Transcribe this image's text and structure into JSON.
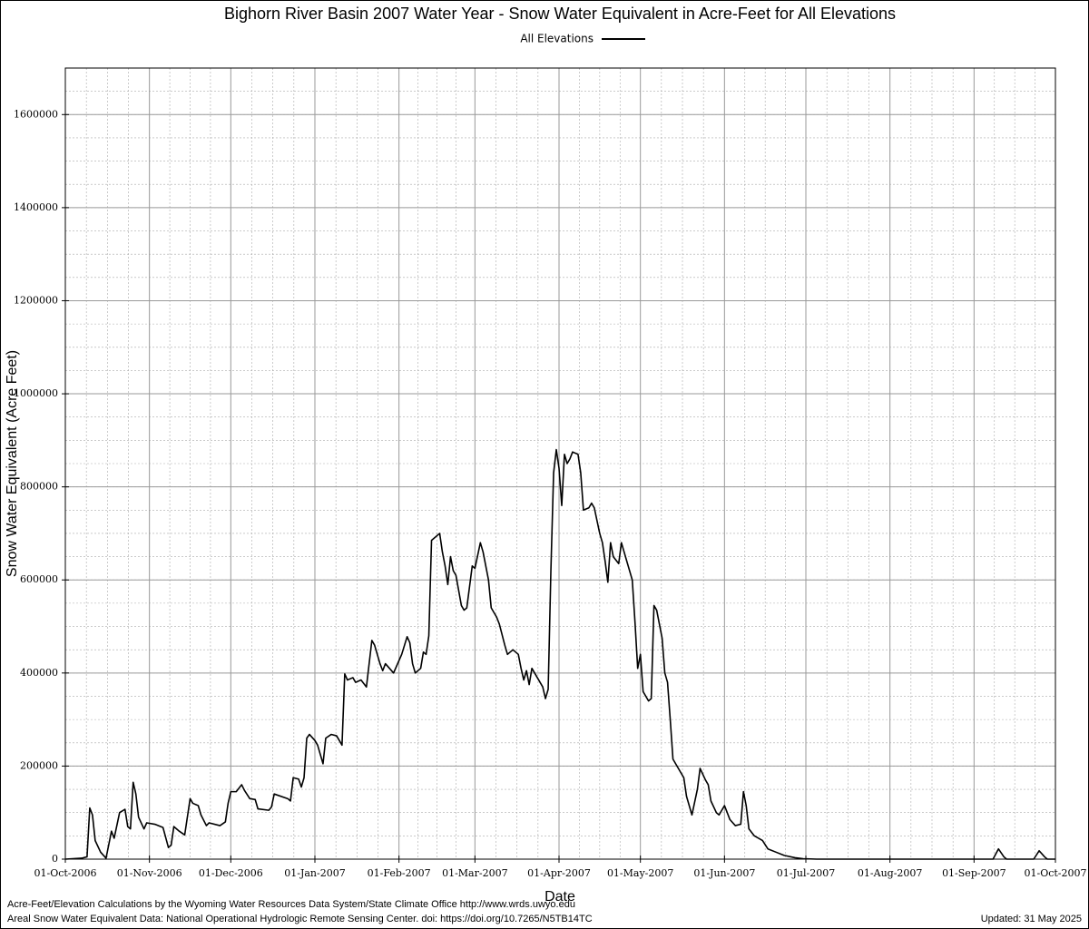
{
  "chart_data": {
    "type": "line",
    "title": "Bighorn River Basin 2007 Water Year - Snow Water Equivalent in Acre-Feet for All Elevations",
    "x_label": "Date",
    "y_label": "Snow Water Equivalent (Acre Feet)",
    "footnotes": [
      "Acre-Feet/Elevation Calculations by the Wyoming Water Resources Data System/State Climate Office http://www.wrds.uwyo.edu",
      "Areal Snow Water Equivalent Data: National Operational Hydrologic Remote Sensing Center. doi: https://doi.org/10.7265/N5TB14TC"
    ],
    "updated": "Updated: 31 May 2025",
    "grid": true,
    "xlim": [
      "2006-10-01",
      "2007-10-01"
    ],
    "xticks": [
      {
        "value": "2006-10-01",
        "label": "01-Oct-2006"
      },
      {
        "value": "2006-11-01",
        "label": "01-Nov-2006"
      },
      {
        "value": "2006-12-01",
        "label": "01-Dec-2006"
      },
      {
        "value": "2007-01-01",
        "label": "01-Jan-2007"
      },
      {
        "value": "2007-02-01",
        "label": "01-Feb-2007"
      },
      {
        "value": "2007-03-01",
        "label": "01-Mar-2007"
      },
      {
        "value": "2007-04-01",
        "label": "01-Apr-2007"
      },
      {
        "value": "2007-05-01",
        "label": "01-May-2007"
      },
      {
        "value": "2007-06-01",
        "label": "01-Jun-2007"
      },
      {
        "value": "2007-07-01",
        "label": "01-Jul-2007"
      },
      {
        "value": "2007-08-01",
        "label": "01-Aug-2007"
      },
      {
        "value": "2007-09-01",
        "label": "01-Sep-2007"
      },
      {
        "value": "2007-10-01",
        "label": "01-Oct-2007"
      }
    ],
    "ylim": [
      0,
      1700000
    ],
    "yticks": [
      0,
      200000,
      400000,
      600000,
      800000,
      1000000,
      1200000,
      1400000,
      1600000
    ],
    "x": [
      "2006-10-01",
      "2006-10-07",
      "2006-10-09",
      "2006-10-10",
      "2006-10-11",
      "2006-10-12",
      "2006-10-14",
      "2006-10-16",
      "2006-10-18",
      "2006-10-19",
      "2006-10-21",
      "2006-10-23",
      "2006-10-24",
      "2006-10-25",
      "2006-10-26",
      "2006-10-27",
      "2006-10-28",
      "2006-10-30",
      "2006-10-31",
      "2006-11-03",
      "2006-11-06",
      "2006-11-08",
      "2006-11-09",
      "2006-11-10",
      "2006-11-12",
      "2006-11-14",
      "2006-11-16",
      "2006-11-17",
      "2006-11-19",
      "2006-11-20",
      "2006-11-22",
      "2006-11-23",
      "2006-11-27",
      "2006-11-29",
      "2006-11-30",
      "2006-12-01",
      "2006-12-03",
      "2006-12-05",
      "2006-12-06",
      "2006-12-08",
      "2006-12-10",
      "2006-12-11",
      "2006-12-15",
      "2006-12-16",
      "2006-12-17",
      "2006-12-22",
      "2006-12-23",
      "2006-12-24",
      "2006-12-26",
      "2006-12-27",
      "2006-12-28",
      "2006-12-29",
      "2006-12-30",
      "2007-01-01",
      "2007-01-02",
      "2007-01-04",
      "2007-01-05",
      "2007-01-07",
      "2007-01-09",
      "2007-01-11",
      "2007-01-12",
      "2007-01-13",
      "2007-01-15",
      "2007-01-16",
      "2007-01-18",
      "2007-01-20",
      "2007-01-22",
      "2007-01-23",
      "2007-01-25",
      "2007-01-26",
      "2007-01-27",
      "2007-01-30",
      "2007-02-02",
      "2007-02-04",
      "2007-02-05",
      "2007-02-06",
      "2007-02-07",
      "2007-02-09",
      "2007-02-10",
      "2007-02-11",
      "2007-02-12",
      "2007-02-13",
      "2007-02-16",
      "2007-02-17",
      "2007-02-18",
      "2007-02-19",
      "2007-02-20",
      "2007-02-21",
      "2007-02-22",
      "2007-02-24",
      "2007-02-25",
      "2007-02-26",
      "2007-02-28",
      "2007-03-01",
      "2007-03-03",
      "2007-03-04",
      "2007-03-06",
      "2007-03-07",
      "2007-03-09",
      "2007-03-10",
      "2007-03-12",
      "2007-03-13",
      "2007-03-15",
      "2007-03-17",
      "2007-03-18",
      "2007-03-19",
      "2007-03-20",
      "2007-03-21",
      "2007-03-22",
      "2007-03-24",
      "2007-03-26",
      "2007-03-27",
      "2007-03-28",
      "2007-03-29",
      "2007-03-30",
      "2007-03-31",
      "2007-04-01",
      "2007-04-02",
      "2007-04-03",
      "2007-04-04",
      "2007-04-05",
      "2007-04-06",
      "2007-04-08",
      "2007-04-09",
      "2007-04-10",
      "2007-04-12",
      "2007-04-13",
      "2007-04-14",
      "2007-04-16",
      "2007-04-17",
      "2007-04-18",
      "2007-04-19",
      "2007-04-20",
      "2007-04-21",
      "2007-04-23",
      "2007-04-24",
      "2007-04-25",
      "2007-04-26",
      "2007-04-28",
      "2007-04-29",
      "2007-04-30",
      "2007-05-01",
      "2007-05-02",
      "2007-05-04",
      "2007-05-05",
      "2007-05-06",
      "2007-05-07",
      "2007-05-09",
      "2007-05-10",
      "2007-05-11",
      "2007-05-12",
      "2007-05-13",
      "2007-05-15",
      "2007-05-17",
      "2007-05-18",
      "2007-05-20",
      "2007-05-22",
      "2007-05-23",
      "2007-05-25",
      "2007-05-26",
      "2007-05-27",
      "2007-05-29",
      "2007-05-30",
      "2007-06-01",
      "2007-06-02",
      "2007-06-03",
      "2007-06-05",
      "2007-06-07",
      "2007-06-08",
      "2007-06-09",
      "2007-06-10",
      "2007-06-12",
      "2007-06-15",
      "2007-06-17",
      "2007-06-20",
      "2007-06-23",
      "2007-06-27",
      "2007-06-30",
      "2007-07-05",
      "2007-09-08",
      "2007-09-10",
      "2007-09-12",
      "2007-09-13",
      "2007-09-23",
      "2007-09-25",
      "2007-09-27",
      "2007-09-28",
      "2007-10-01"
    ],
    "series": [
      {
        "name": "All Elevations",
        "color": "#000000",
        "values": [
          0,
          2000,
          5000,
          110000,
          95000,
          40000,
          15000,
          2000,
          60000,
          45000,
          100000,
          107000,
          70000,
          65000,
          165000,
          140000,
          90000,
          65000,
          78000,
          75000,
          68000,
          25000,
          30000,
          70000,
          60000,
          52000,
          130000,
          120000,
          115000,
          95000,
          72000,
          78000,
          72000,
          80000,
          120000,
          145000,
          145000,
          160000,
          148000,
          130000,
          128000,
          108000,
          105000,
          112000,
          140000,
          130000,
          125000,
          175000,
          172000,
          155000,
          175000,
          260000,
          268000,
          255000,
          245000,
          205000,
          260000,
          268000,
          265000,
          245000,
          398000,
          385000,
          390000,
          380000,
          385000,
          370000,
          470000,
          460000,
          420000,
          405000,
          420000,
          400000,
          440000,
          478000,
          465000,
          420000,
          400000,
          410000,
          445000,
          440000,
          480000,
          685000,
          700000,
          660000,
          630000,
          590000,
          650000,
          620000,
          610000,
          545000,
          535000,
          540000,
          630000,
          625000,
          680000,
          660000,
          600000,
          540000,
          520000,
          505000,
          460000,
          440000,
          450000,
          440000,
          410000,
          385000,
          405000,
          375000,
          410000,
          390000,
          370000,
          345000,
          365000,
          620000,
          830000,
          880000,
          840000,
          760000,
          870000,
          850000,
          860000,
          875000,
          870000,
          830000,
          750000,
          755000,
          765000,
          755000,
          700000,
          680000,
          640000,
          595000,
          680000,
          650000,
          635000,
          680000,
          660000,
          640000,
          600000,
          510000,
          410000,
          440000,
          360000,
          340000,
          345000,
          545000,
          535000,
          475000,
          400000,
          380000,
          300000,
          215000,
          195000,
          175000,
          135000,
          95000,
          150000,
          195000,
          170000,
          160000,
          125000,
          100000,
          95000,
          115000,
          100000,
          85000,
          72000,
          75000,
          145000,
          115000,
          65000,
          50000,
          40000,
          22000,
          15000,
          8000,
          3000,
          1000,
          0,
          0,
          22000,
          5000,
          0,
          0,
          18000,
          5000,
          0,
          0
        ]
      }
    ]
  }
}
